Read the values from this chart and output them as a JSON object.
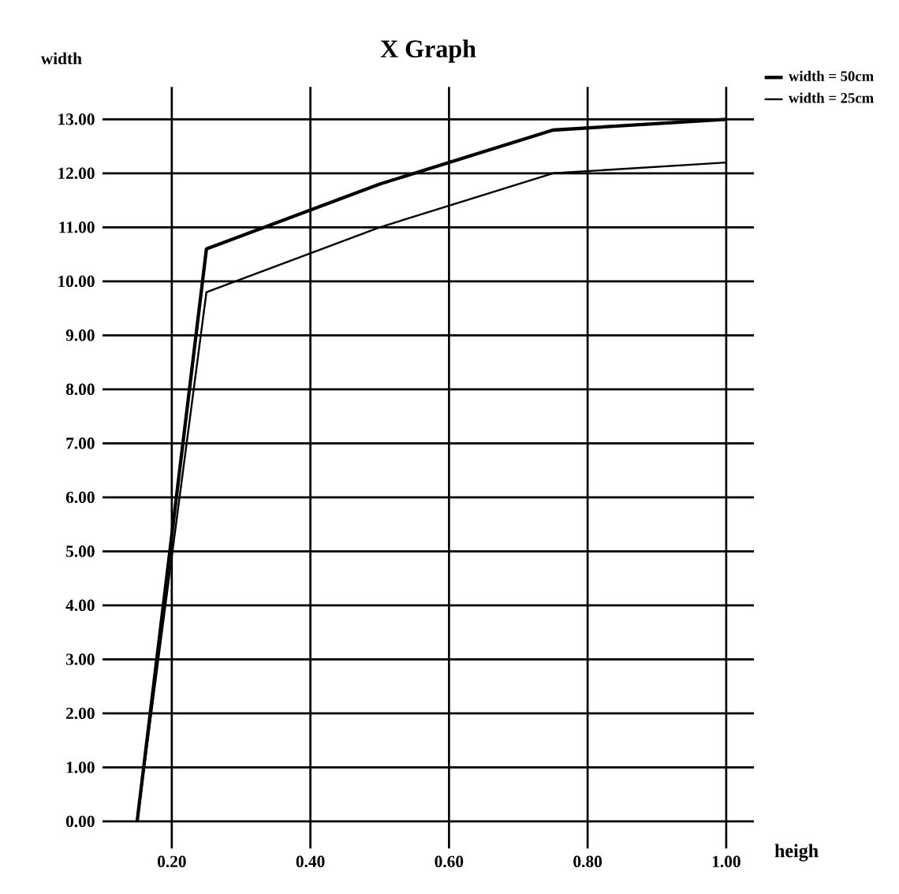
{
  "chart_data": {
    "type": "line",
    "title": "X Graph",
    "xlabel": "heigh",
    "ylabel": "width",
    "xlim": [
      0.1,
      1.04
    ],
    "ylim": [
      -0.5,
      13.6
    ],
    "xticks": [
      {
        "value": 0.2,
        "label": "0.20"
      },
      {
        "value": 0.4,
        "label": "0.40"
      },
      {
        "value": 0.6,
        "label": "0.60"
      },
      {
        "value": 0.8,
        "label": "0.80"
      },
      {
        "value": 1.0,
        "label": "1.00"
      }
    ],
    "yticks": [
      {
        "value": 0,
        "label": "0.00"
      },
      {
        "value": 1,
        "label": "1.00"
      },
      {
        "value": 2,
        "label": "2.00"
      },
      {
        "value": 3,
        "label": "3.00"
      },
      {
        "value": 4,
        "label": "4.00"
      },
      {
        "value": 5,
        "label": "5.00"
      },
      {
        "value": 6,
        "label": "6.00"
      },
      {
        "value": 7,
        "label": "7.00"
      },
      {
        "value": 8,
        "label": "8.00"
      },
      {
        "value": 9,
        "label": "9.00"
      },
      {
        "value": 10,
        "label": "10.00"
      },
      {
        "value": 11,
        "label": "11.00"
      },
      {
        "value": 12,
        "label": "12.00"
      },
      {
        "value": 13,
        "label": "13.00"
      }
    ],
    "grid": true,
    "legend": "top right",
    "marker": "none",
    "line_style": "solid",
    "series": [
      {
        "name": "width = 50cm",
        "color": "#000000",
        "x": [
          0.15,
          0.25,
          0.5,
          0.75,
          1.0
        ],
        "values": [
          0,
          10.6,
          11.8,
          12.8,
          13.0
        ]
      },
      {
        "name": "width = 25cm",
        "color": "#000000",
        "x": [
          0.15,
          0.25,
          0.5,
          0.75,
          1.0
        ],
        "values": [
          0,
          9.8,
          11.0,
          12.0,
          12.2
        ]
      }
    ]
  }
}
